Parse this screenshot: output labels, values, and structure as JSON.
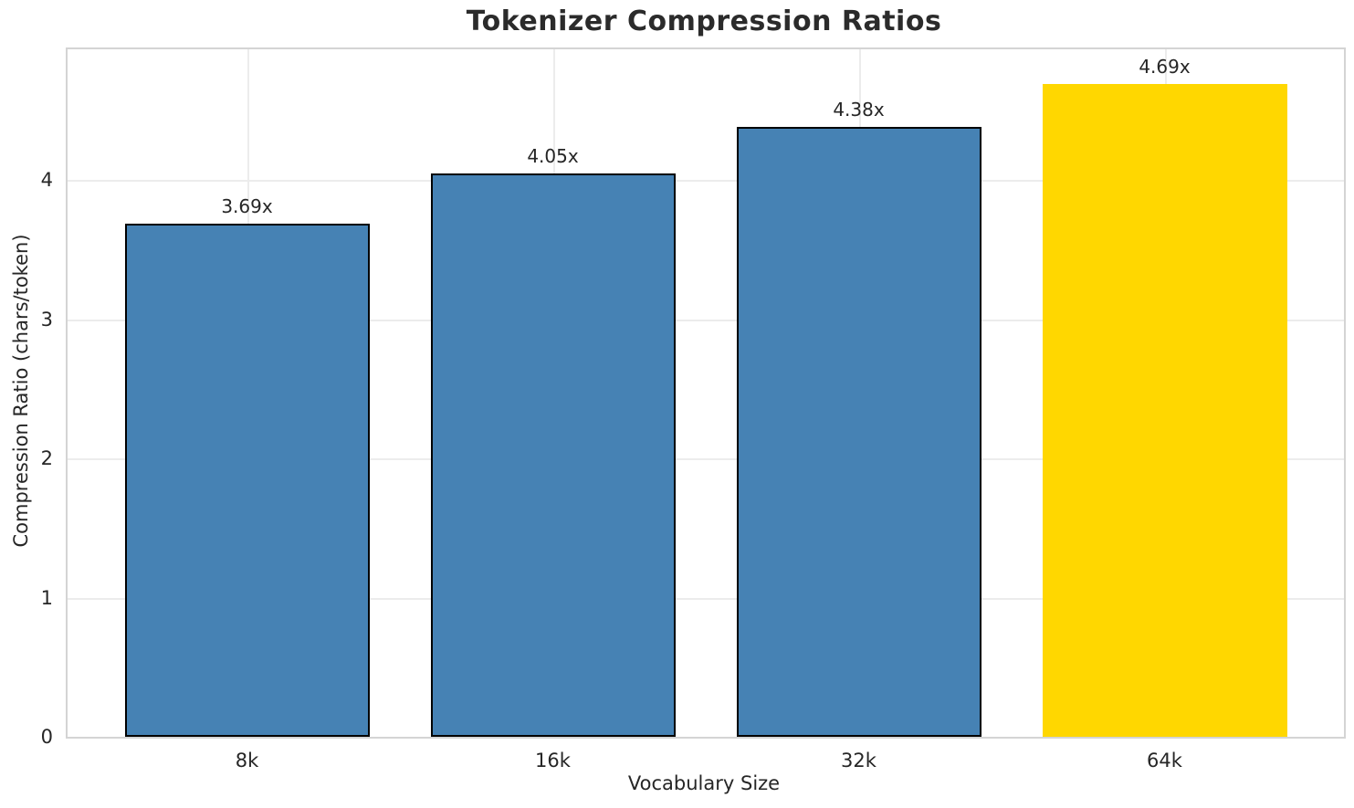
{
  "chart_data": {
    "type": "bar",
    "title": "Tokenizer Compression Ratios",
    "xlabel": "Vocabulary Size",
    "ylabel": "Compression Ratio (chars/token)",
    "categories": [
      "8k",
      "16k",
      "32k",
      "64k"
    ],
    "values": [
      3.69,
      4.05,
      4.38,
      4.69
    ],
    "value_labels": [
      "3.69x",
      "4.05x",
      "4.38x",
      "4.69x"
    ],
    "bar_colors": [
      "#4682B4",
      "#4682B4",
      "#4682B4",
      "#FFD700"
    ],
    "bar_edge_colors": [
      "#000000",
      "#000000",
      "#000000",
      "#FFD700"
    ],
    "yticks": [
      0,
      1,
      2,
      3,
      4
    ],
    "ylim": [
      0,
      4.94
    ],
    "grid": true,
    "legend_position": "none",
    "background_color": "#ffffff",
    "grid_color": "#ececec",
    "spine_color": "#d4d4d4",
    "text_color": "#262626"
  }
}
